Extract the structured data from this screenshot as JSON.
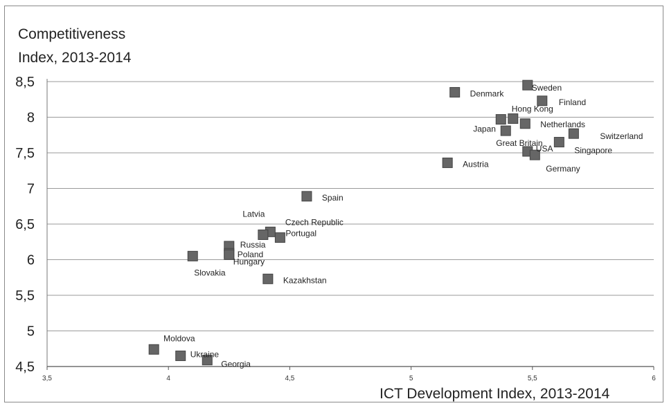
{
  "chart_data": {
    "type": "scatter",
    "title": "",
    "ylabel_line1": "Competitiveness",
    "ylabel_line2": "Index, 2013-2014",
    "xlabel": "ICT Development Index, 2013-2014",
    "xlim": [
      3.5,
      6
    ],
    "ylim": [
      4.5,
      8.5
    ],
    "xticks": [
      "3,5",
      "4",
      "4,5",
      "5",
      "5,5",
      "6"
    ],
    "xtick_values": [
      3.5,
      4,
      4.5,
      5,
      5.5,
      6
    ],
    "yticks": [
      "8,5",
      "8",
      "7,5",
      "7",
      "6,5",
      "6",
      "5,5",
      "5",
      "4,5"
    ],
    "ytick_values": [
      8.5,
      8,
      7.5,
      7,
      6.5,
      6,
      5.5,
      5,
      4.5
    ],
    "grid": "horizontal",
    "marker_color": "#666666",
    "points": [
      {
        "label": "Sweden",
        "x": 5.48,
        "y": 8.45
      },
      {
        "label": "Denmark",
        "x": 5.18,
        "y": 8.35
      },
      {
        "label": "Finland",
        "x": 5.54,
        "y": 8.23
      },
      {
        "label": "Hong Kong",
        "x": 5.42,
        "y": 7.98
      },
      {
        "label": "Japan",
        "x": 5.37,
        "y": 7.97
      },
      {
        "label": "Netherlands",
        "x": 5.47,
        "y": 7.91
      },
      {
        "label": "Great Britain",
        "x": 5.39,
        "y": 7.81
      },
      {
        "label": "Switzerland",
        "x": 5.67,
        "y": 7.77
      },
      {
        "label": "Singapore",
        "x": 5.61,
        "y": 7.65
      },
      {
        "label": "USA",
        "x": 5.48,
        "y": 7.52
      },
      {
        "label": "Germany",
        "x": 5.51,
        "y": 7.47
      },
      {
        "label": "Austria",
        "x": 5.15,
        "y": 7.36
      },
      {
        "label": "Spain",
        "x": 4.57,
        "y": 6.89
      },
      {
        "label": "Latvia",
        "x": 4.42,
        "y": 6.39
      },
      {
        "label": "Czech Republic",
        "x": 4.39,
        "y": 6.35
      },
      {
        "label": "Portugal",
        "x": 4.46,
        "y": 6.31
      },
      {
        "label": "Russia",
        "x": 4.25,
        "y": 6.19
      },
      {
        "label": "Poland",
        "x": 4.25,
        "y": 6.09
      },
      {
        "label": "Hungary",
        "x": 4.25,
        "y": 6.07
      },
      {
        "label": "Slovakia",
        "x": 4.1,
        "y": 6.05
      },
      {
        "label": "Kazakhstan",
        "x": 4.41,
        "y": 5.73
      },
      {
        "label": "Moldova",
        "x": 3.94,
        "y": 4.74
      },
      {
        "label": "Ukraine",
        "x": 4.05,
        "y": 4.65
      },
      {
        "label": "Georgia",
        "x": 4.16,
        "y": 4.59
      }
    ]
  }
}
